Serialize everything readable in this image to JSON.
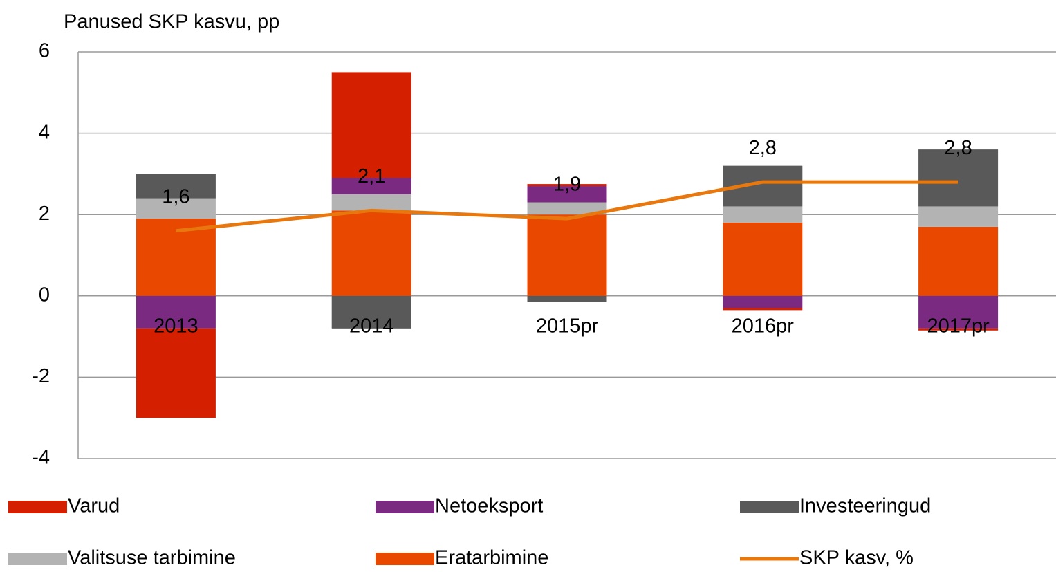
{
  "chart_data": {
    "type": "bar",
    "stacked": true,
    "title": "Panused SKP kasvu, pp",
    "categories": [
      "2013",
      "2014",
      "2015pr",
      "2016pr",
      "2017pr"
    ],
    "series": [
      {
        "name": "Varud",
        "color": "#d42000",
        "values": [
          -2.2,
          2.6,
          0.05,
          -0.05,
          -0.05
        ]
      },
      {
        "name": "Netoeksport",
        "color": "#7b2a82",
        "values": [
          -0.8,
          0.4,
          0.4,
          -0.3,
          -0.8
        ]
      },
      {
        "name": "Investeeringud",
        "color": "#595959",
        "values": [
          0.6,
          -0.8,
          -0.15,
          1.0,
          1.4
        ]
      },
      {
        "name": "Valitsuse tarbimine",
        "color": "#b3b3b3",
        "values": [
          0.5,
          0.4,
          0.3,
          0.4,
          0.5
        ]
      },
      {
        "name": "Eratarbimine",
        "color": "#e84800",
        "values": [
          1.9,
          2.1,
          2.0,
          1.8,
          1.7
        ]
      },
      {
        "name": "SKP kasv, %",
        "type": "line",
        "color": "#e8780e",
        "values": [
          1.6,
          2.1,
          1.9,
          2.8,
          2.8
        ],
        "value_labels": [
          "1,6",
          "2,1",
          "1,9",
          "2,8",
          "2,8"
        ]
      }
    ],
    "ylim": [
      -4,
      6
    ],
    "yticks": [
      -4,
      -2,
      0,
      2,
      4,
      6
    ],
    "grid": true
  }
}
